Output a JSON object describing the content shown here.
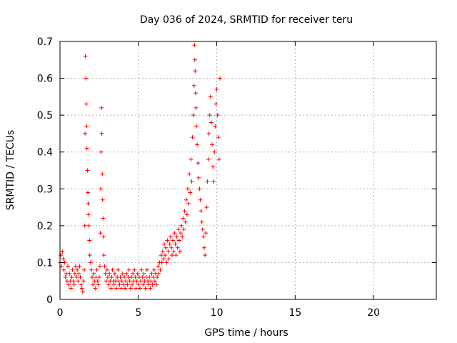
{
  "chart_data": {
    "type": "scatter",
    "title": "Day 036 of 2024, SRMTID for receiver teru",
    "xlabel": "GPS time / hours",
    "ylabel": "SRMTID / TECUs",
    "xlim": [
      0,
      24
    ],
    "ylim": [
      0,
      0.7
    ],
    "xticks": [
      0,
      5,
      10,
      15,
      20
    ],
    "xtick_labels": [
      "0",
      "5",
      "10",
      "15",
      "20"
    ],
    "yticks": [
      0,
      0.1,
      0.2,
      0.3,
      0.4,
      0.5,
      0.6,
      0.7
    ],
    "ytick_labels": [
      "0",
      "0.1",
      "0.2",
      "0.3",
      "0.4",
      "0.5",
      "0.6",
      "0.7"
    ],
    "grid": true,
    "marker": "plus",
    "color": "#ff0000",
    "series": [
      {
        "name": "SRMTID",
        "points": [
          [
            0.0,
            0.1
          ],
          [
            0.05,
            0.12
          ],
          [
            0.1,
            0.09
          ],
          [
            0.15,
            0.13
          ],
          [
            0.2,
            0.11
          ],
          [
            0.25,
            0.08
          ],
          [
            0.3,
            0.1
          ],
          [
            0.35,
            0.06
          ],
          [
            0.4,
            0.07
          ],
          [
            0.45,
            0.05
          ],
          [
            0.5,
            0.09
          ],
          [
            0.55,
            0.04
          ],
          [
            0.6,
            0.07
          ],
          [
            0.65,
            0.05
          ],
          [
            0.7,
            0.03
          ],
          [
            0.75,
            0.06
          ],
          [
            0.8,
            0.08
          ],
          [
            0.85,
            0.05
          ],
          [
            0.9,
            0.04
          ],
          [
            0.95,
            0.07
          ],
          [
            1.0,
            0.09
          ],
          [
            1.05,
            0.06
          ],
          [
            1.1,
            0.08
          ],
          [
            1.15,
            0.05
          ],
          [
            1.2,
            0.07
          ],
          [
            1.25,
            0.09
          ],
          [
            1.3,
            0.06
          ],
          [
            1.35,
            0.04
          ],
          [
            1.4,
            0.03
          ],
          [
            1.45,
            0.02
          ],
          [
            1.5,
            0.05
          ],
          [
            1.55,
            0.08
          ],
          [
            1.58,
            0.2
          ],
          [
            1.6,
            0.45
          ],
          [
            1.62,
            0.66
          ],
          [
            1.65,
            0.6
          ],
          [
            1.68,
            0.53
          ],
          [
            1.7,
            0.47
          ],
          [
            1.72,
            0.41
          ],
          [
            1.75,
            0.35
          ],
          [
            1.78,
            0.29
          ],
          [
            1.8,
            0.26
          ],
          [
            1.82,
            0.23
          ],
          [
            1.85,
            0.2
          ],
          [
            1.88,
            0.16
          ],
          [
            1.9,
            0.12
          ],
          [
            1.95,
            0.1
          ],
          [
            2.0,
            0.08
          ],
          [
            2.05,
            0.06
          ],
          [
            2.1,
            0.04
          ],
          [
            2.15,
            0.07
          ],
          [
            2.2,
            0.05
          ],
          [
            2.25,
            0.03
          ],
          [
            2.3,
            0.06
          ],
          [
            2.35,
            0.08
          ],
          [
            2.4,
            0.05
          ],
          [
            2.45,
            0.04
          ],
          [
            2.5,
            0.06
          ],
          [
            2.55,
            0.09
          ],
          [
            2.58,
            0.18
          ],
          [
            2.6,
            0.3
          ],
          [
            2.62,
            0.4
          ],
          [
            2.65,
            0.52
          ],
          [
            2.67,
            0.45
          ],
          [
            2.7,
            0.34
          ],
          [
            2.72,
            0.27
          ],
          [
            2.75,
            0.22
          ],
          [
            2.78,
            0.17
          ],
          [
            2.8,
            0.12
          ],
          [
            2.85,
            0.09
          ],
          [
            2.9,
            0.07
          ],
          [
            2.95,
            0.05
          ],
          [
            3.0,
            0.08
          ],
          [
            3.05,
            0.06
          ],
          [
            3.1,
            0.04
          ],
          [
            3.15,
            0.07
          ],
          [
            3.2,
            0.05
          ],
          [
            3.25,
            0.03
          ],
          [
            3.3,
            0.06
          ],
          [
            3.35,
            0.08
          ],
          [
            3.4,
            0.05
          ],
          [
            3.45,
            0.04
          ],
          [
            3.5,
            0.07
          ],
          [
            3.55,
            0.05
          ],
          [
            3.6,
            0.03
          ],
          [
            3.65,
            0.06
          ],
          [
            3.7,
            0.08
          ],
          [
            3.75,
            0.05
          ],
          [
            3.8,
            0.04
          ],
          [
            3.85,
            0.06
          ],
          [
            3.9,
            0.03
          ],
          [
            3.95,
            0.05
          ],
          [
            4.0,
            0.07
          ],
          [
            4.05,
            0.04
          ],
          [
            4.1,
            0.06
          ],
          [
            4.15,
            0.03
          ],
          [
            4.2,
            0.05
          ],
          [
            4.25,
            0.07
          ],
          [
            4.3,
            0.04
          ],
          [
            4.35,
            0.06
          ],
          [
            4.4,
            0.08
          ],
          [
            4.45,
            0.05
          ],
          [
            4.5,
            0.03
          ],
          [
            4.55,
            0.06
          ],
          [
            4.6,
            0.04
          ],
          [
            4.65,
            0.07
          ],
          [
            4.7,
            0.05
          ],
          [
            4.75,
            0.08
          ],
          [
            4.8,
            0.06
          ],
          [
            4.85,
            0.03
          ],
          [
            4.9,
            0.05
          ],
          [
            4.95,
            0.07
          ],
          [
            5.0,
            0.04
          ],
          [
            5.05,
            0.06
          ],
          [
            5.1,
            0.03
          ],
          [
            5.15,
            0.05
          ],
          [
            5.2,
            0.08
          ],
          [
            5.25,
            0.06
          ],
          [
            5.3,
            0.04
          ],
          [
            5.35,
            0.07
          ],
          [
            5.4,
            0.05
          ],
          [
            5.45,
            0.03
          ],
          [
            5.5,
            0.06
          ],
          [
            5.55,
            0.08
          ],
          [
            5.6,
            0.05
          ],
          [
            5.65,
            0.04
          ],
          [
            5.7,
            0.06
          ],
          [
            5.75,
            0.03
          ],
          [
            5.8,
            0.05
          ],
          [
            5.85,
            0.07
          ],
          [
            5.9,
            0.04
          ],
          [
            5.95,
            0.06
          ],
          [
            6.0,
            0.08
          ],
          [
            6.05,
            0.05
          ],
          [
            6.1,
            0.07
          ],
          [
            6.15,
            0.04
          ],
          [
            6.2,
            0.06
          ],
          [
            6.25,
            0.09
          ],
          [
            6.3,
            0.07
          ],
          [
            6.35,
            0.1
          ],
          [
            6.4,
            0.08
          ],
          [
            6.45,
            0.12
          ],
          [
            6.5,
            0.1
          ],
          [
            6.55,
            0.13
          ],
          [
            6.6,
            0.11
          ],
          [
            6.65,
            0.15
          ],
          [
            6.7,
            0.12
          ],
          [
            6.75,
            0.14
          ],
          [
            6.8,
            0.1
          ],
          [
            6.85,
            0.16
          ],
          [
            6.9,
            0.13
          ],
          [
            6.95,
            0.11
          ],
          [
            7.0,
            0.15
          ],
          [
            7.05,
            0.17
          ],
          [
            7.1,
            0.14
          ],
          [
            7.15,
            0.12
          ],
          [
            7.2,
            0.16
          ],
          [
            7.25,
            0.13
          ],
          [
            7.3,
            0.18
          ],
          [
            7.35,
            0.15
          ],
          [
            7.4,
            0.12
          ],
          [
            7.45,
            0.17
          ],
          [
            7.5,
            0.14
          ],
          [
            7.55,
            0.19
          ],
          [
            7.6,
            0.16
          ],
          [
            7.65,
            0.13
          ],
          [
            7.7,
            0.18
          ],
          [
            7.75,
            0.2
          ],
          [
            7.8,
            0.17
          ],
          [
            7.85,
            0.22
          ],
          [
            7.9,
            0.19
          ],
          [
            7.95,
            0.24
          ],
          [
            8.0,
            0.21
          ],
          [
            8.05,
            0.27
          ],
          [
            8.1,
            0.23
          ],
          [
            8.15,
            0.3
          ],
          [
            8.2,
            0.26
          ],
          [
            8.25,
            0.34
          ],
          [
            8.3,
            0.29
          ],
          [
            8.35,
            0.38
          ],
          [
            8.4,
            0.32
          ],
          [
            8.45,
            0.44
          ],
          [
            8.5,
            0.5
          ],
          [
            8.55,
            0.58
          ],
          [
            8.58,
            0.69
          ],
          [
            8.6,
            0.65
          ],
          [
            8.62,
            0.62
          ],
          [
            8.65,
            0.56
          ],
          [
            8.68,
            0.52
          ],
          [
            8.7,
            0.47
          ],
          [
            8.75,
            0.42
          ],
          [
            8.8,
            0.37
          ],
          [
            8.85,
            0.33
          ],
          [
            8.9,
            0.3
          ],
          [
            8.95,
            0.27
          ],
          [
            9.0,
            0.24
          ],
          [
            9.05,
            0.21
          ],
          [
            9.1,
            0.19
          ],
          [
            9.15,
            0.17
          ],
          [
            9.2,
            0.14
          ],
          [
            9.25,
            0.12
          ],
          [
            9.3,
            0.18
          ],
          [
            9.35,
            0.25
          ],
          [
            9.4,
            0.32
          ],
          [
            9.45,
            0.38
          ],
          [
            9.5,
            0.45
          ],
          [
            9.55,
            0.5
          ],
          [
            9.6,
            0.55
          ],
          [
            9.65,
            0.48
          ],
          [
            9.7,
            0.42
          ],
          [
            9.75,
            0.36
          ],
          [
            9.8,
            0.32
          ],
          [
            9.85,
            0.4
          ],
          [
            9.9,
            0.47
          ],
          [
            9.95,
            0.53
          ],
          [
            10.0,
            0.57
          ],
          [
            10.05,
            0.5
          ],
          [
            10.1,
            0.44
          ],
          [
            10.15,
            0.38
          ],
          [
            10.2,
            0.6
          ]
        ]
      }
    ]
  }
}
